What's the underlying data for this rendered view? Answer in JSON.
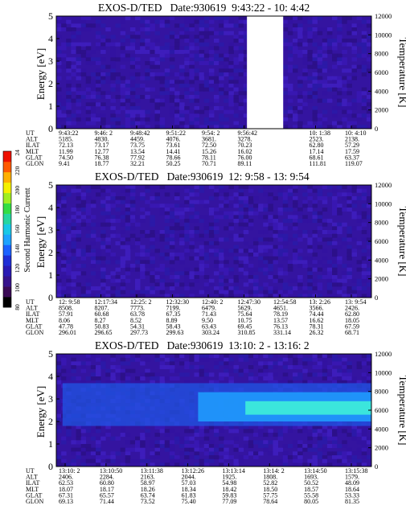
{
  "panels": [
    {
      "title": "EXOS-D/TED   Date:930619  9:43:22 - 10: 4:42",
      "gap": [
        0.605,
        0.72
      ],
      "bright_band": null,
      "ut_labels": [
        "9:43:22",
        "9:46: 2",
        "9:48:42",
        "9:51:22",
        "9:54: 2",
        "9:56:42",
        "",
        "10: 1:38",
        "10: 4:10"
      ],
      "rows": [
        {
          "key": "UT",
          "values": []
        },
        {
          "key": "ALT",
          "values": [
            "5185.",
            "4830.",
            "4459.",
            "4076.",
            "3681.",
            "3278.",
            "",
            "2523.",
            "2138."
          ]
        },
        {
          "key": "ILAT",
          "values": [
            "72.13",
            "73.17",
            "73.75",
            "73.61",
            "72.50",
            "70.23",
            "",
            "62.80",
            "57.29"
          ]
        },
        {
          "key": "MLT",
          "values": [
            "11.99",
            "12.77",
            "13.54",
            "14.41",
            "15.26",
            "16.02",
            "",
            "17.14",
            "17.59"
          ]
        },
        {
          "key": "GLAT",
          "values": [
            "74.50",
            "76.38",
            "77.92",
            "78.66",
            "78.11",
            "76.00",
            "",
            "68.61",
            "63.37"
          ]
        },
        {
          "key": "GLON",
          "values": [
            "9.41",
            "18.77",
            "32.21",
            "50.25",
            "70.71",
            "89.11",
            "",
            "111.81",
            "119.07"
          ]
        }
      ]
    },
    {
      "title": "EXOS-D/TED   Date:930619  12: 9:58 - 13: 9:54",
      "gap": null,
      "bright_band": null,
      "ut_labels": [
        "12: 9:58",
        "12:17:34",
        "12:25: 2",
        "12:32:30",
        "12:40: 2",
        "12:47:30",
        "12:54:58",
        "13: 2:26",
        "13: 9:54"
      ],
      "rows": [
        {
          "key": "UT",
          "values": []
        },
        {
          "key": "ALT",
          "values": [
            "8508.",
            "8207.",
            "7773.",
            "7199.",
            "6479.",
            "5629.",
            "4651.",
            "3566.",
            "2426."
          ]
        },
        {
          "key": "ILAT",
          "values": [
            "57.91",
            "60.68",
            "63.78",
            "67.35",
            "71.43",
            "75.64",
            "78.19",
            "74.44",
            "62.80"
          ]
        },
        {
          "key": "MLT",
          "values": [
            "8.06",
            "8.27",
            "8.52",
            "8.89",
            "9.50",
            "10.75",
            "13.57",
            "16.62",
            "18.05"
          ]
        },
        {
          "key": "GLAT",
          "values": [
            "47.78",
            "50.83",
            "54.31",
            "58.43",
            "63.43",
            "69.45",
            "76.13",
            "78.31",
            "67.59"
          ]
        },
        {
          "key": "GLON",
          "values": [
            "296.01",
            "296.65",
            "297.73",
            "299.63",
            "303.24",
            "310.85",
            "331.14",
            "26.32",
            "68.71"
          ]
        }
      ]
    },
    {
      "title": "EXOS-D/TED   Date:930619  13:10: 2 - 13:16: 2",
      "gap": null,
      "bright_band": [
        2.0,
        3.3
      ],
      "ut_labels": [
        "13:10: 2",
        "13:10:50",
        "13:11:38",
        "13:12:26",
        "13:13:14",
        "13:14: 2",
        "13:14:50",
        "13:15:38"
      ],
      "rows": [
        {
          "key": "UT",
          "values": []
        },
        {
          "key": "ALT",
          "values": [
            "2406.",
            "2284.",
            "2163.",
            "2044.",
            "1925.",
            "1808.",
            "1693.",
            "1579."
          ]
        },
        {
          "key": "ILAT",
          "values": [
            "62.53",
            "60.80",
            "58.97",
            "57.03",
            "54.98",
            "52.82",
            "50.52",
            "48.09"
          ]
        },
        {
          "key": "MLT",
          "values": [
            "18.07",
            "18.17",
            "18.26",
            "18.34",
            "18.42",
            "18.50",
            "18.57",
            "18.64"
          ]
        },
        {
          "key": "GLAT",
          "values": [
            "67.31",
            "65.57",
            "63.74",
            "61.83",
            "59.83",
            "57.75",
            "55.58",
            "53.33"
          ]
        },
        {
          "key": "GLON",
          "values": [
            "69.13",
            "71.44",
            "73.52",
            "75.40",
            "77.09",
            "78.64",
            "80.05",
            "81.35"
          ]
        }
      ]
    }
  ],
  "axes": {
    "left_label": "Energy [eV]",
    "right_label": "Temperature [K]",
    "energy_ticks": [
      "0",
      "1",
      "2",
      "3",
      "4",
      "5"
    ],
    "temp_ticks": [
      "0",
      "2000",
      "4000",
      "6000",
      "8000",
      "10000",
      "12000"
    ]
  },
  "colorbar": {
    "label": "Second Harmonic Current",
    "ticks": [
      "80",
      "100",
      "120",
      "140",
      "160",
      "180",
      "200",
      "220",
      "240"
    ],
    "colors": [
      "#000000",
      "#3a0a55",
      "#36128c",
      "#2a1ab4",
      "#1f2ed6",
      "#1c62ff",
      "#1ea3ff",
      "#19c8e6",
      "#26d6a0",
      "#33dd44",
      "#a0ee22",
      "#f4f000",
      "#ffb000",
      "#ff5a00",
      "#ee1100"
    ]
  },
  "chart_data": [
    {
      "type": "heatmap",
      "title": "EXOS-D/TED   Date:930619  9:43:22 - 10: 4:42",
      "xlabel": "UT",
      "ylabel": "Energy [eV]",
      "y2label": "Temperature [K]",
      "ylim": [
        0,
        5
      ],
      "y2lim": [
        0,
        12000
      ],
      "x": [
        "9:43:22",
        "9:46: 2",
        "9:48:42",
        "9:51:22",
        "9:54: 2",
        "9:56:42",
        "10: 1:38",
        "10: 4:10"
      ],
      "colorbar_label": "Second Harmonic Current",
      "colorbar_range": [
        80,
        240
      ]
    },
    {
      "type": "heatmap",
      "title": "EXOS-D/TED   Date:930619  12: 9:58 - 13: 9:54",
      "xlabel": "UT",
      "ylabel": "Energy [eV]",
      "y2label": "Temperature [K]",
      "ylim": [
        0,
        5
      ],
      "y2lim": [
        0,
        12000
      ],
      "x": [
        "12: 9:58",
        "12:17:34",
        "12:25: 2",
        "12:32:30",
        "12:40: 2",
        "12:47:30",
        "12:54:58",
        "13: 2:26",
        "13: 9:54"
      ],
      "colorbar_label": "Second Harmonic Current",
      "colorbar_range": [
        80,
        240
      ]
    },
    {
      "type": "heatmap",
      "title": "EXOS-D/TED   Date:930619  13:10: 2 - 13:16: 2",
      "xlabel": "UT",
      "ylabel": "Energy [eV]",
      "y2label": "Temperature [K]",
      "ylim": [
        0,
        5
      ],
      "y2lim": [
        0,
        12000
      ],
      "x": [
        "13:10: 2",
        "13:10:50",
        "13:11:38",
        "13:12:26",
        "13:13:14",
        "13:14: 2",
        "13:14:50",
        "13:15:38"
      ],
      "colorbar_label": "Second Harmonic Current",
      "colorbar_range": [
        80,
        240
      ]
    }
  ]
}
